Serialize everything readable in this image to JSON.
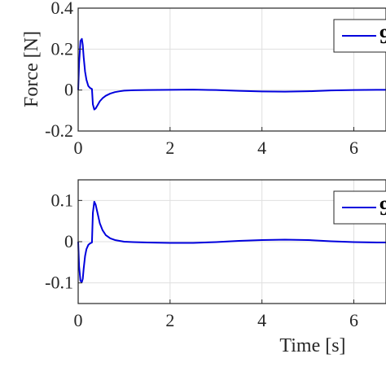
{
  "chart_data": [
    {
      "type": "line",
      "ylabel": "Force [N]",
      "xlabel": "",
      "xlim": [
        0,
        6.7
      ],
      "ylim": [
        -0.2,
        0.4
      ],
      "xticks": [
        "0",
        "2",
        "4",
        "6"
      ],
      "yticks": [
        "-0.2",
        "0",
        "0.2",
        "0.4"
      ],
      "xtick_values": [
        0,
        2,
        4,
        6
      ],
      "ytick_values": [
        -0.2,
        0,
        0.2,
        0.4
      ],
      "grid": true,
      "legend_position": "top-right",
      "legend_text_visible": "9",
      "line_color": "#0000dd",
      "series": [
        {
          "x": [
            0,
            0.02,
            0.05,
            0.08,
            0.1,
            0.12,
            0.15,
            0.18,
            0.22,
            0.26,
            0.3,
            0.32,
            0.35,
            0.38,
            0.42,
            0.47,
            0.53,
            0.6,
            0.7,
            0.8,
            0.9,
            1.0,
            1.2,
            1.5,
            2.0,
            2.5,
            3.0,
            3.5,
            4.0,
            4.5,
            5.0,
            5.5,
            6.0,
            6.5,
            6.7
          ],
          "y": [
            0,
            0.13,
            0.24,
            0.25,
            0.22,
            0.16,
            0.09,
            0.05,
            0.02,
            0.01,
            0.005,
            -0.07,
            -0.095,
            -0.09,
            -0.075,
            -0.055,
            -0.04,
            -0.028,
            -0.017,
            -0.01,
            -0.006,
            -0.003,
            -0.001,
            0.0,
            0.001,
            0.002,
            0.0,
            -0.004,
            -0.007,
            -0.008,
            -0.006,
            -0.002,
            0.0,
            0.001,
            0.001
          ]
        }
      ]
    },
    {
      "type": "line",
      "ylabel": "",
      "xlabel": "Time [s]",
      "xlim": [
        0,
        6.7
      ],
      "ylim": [
        -0.15,
        0.15
      ],
      "xticks": [
        "0",
        "2",
        "4",
        "6"
      ],
      "yticks": [
        "-0.1",
        "0",
        "0.1"
      ],
      "xtick_values": [
        0,
        2,
        4,
        6
      ],
      "ytick_values": [
        -0.1,
        0,
        0.1
      ],
      "grid": true,
      "legend_position": "top-right",
      "legend_text_visible": "9",
      "line_color": "#0000dd",
      "series": [
        {
          "x": [
            0,
            0.02,
            0.05,
            0.08,
            0.1,
            0.12,
            0.15,
            0.18,
            0.22,
            0.26,
            0.3,
            0.32,
            0.35,
            0.38,
            0.42,
            0.47,
            0.53,
            0.6,
            0.7,
            0.8,
            0.9,
            1.0,
            1.2,
            1.5,
            2.0,
            2.5,
            3.0,
            3.5,
            4.0,
            4.5,
            5.0,
            5.5,
            6.0,
            6.5,
            6.7
          ],
          "y": [
            0,
            -0.06,
            -0.095,
            -0.098,
            -0.09,
            -0.065,
            -0.035,
            -0.018,
            -0.008,
            -0.004,
            -0.002,
            0.07,
            0.097,
            0.09,
            0.07,
            0.045,
            0.028,
            0.016,
            0.008,
            0.004,
            0.002,
            0.0,
            -0.001,
            -0.002,
            -0.003,
            -0.003,
            -0.001,
            0.002,
            0.004,
            0.005,
            0.004,
            0.001,
            -0.001,
            -0.002,
            -0.002
          ]
        }
      ]
    }
  ]
}
